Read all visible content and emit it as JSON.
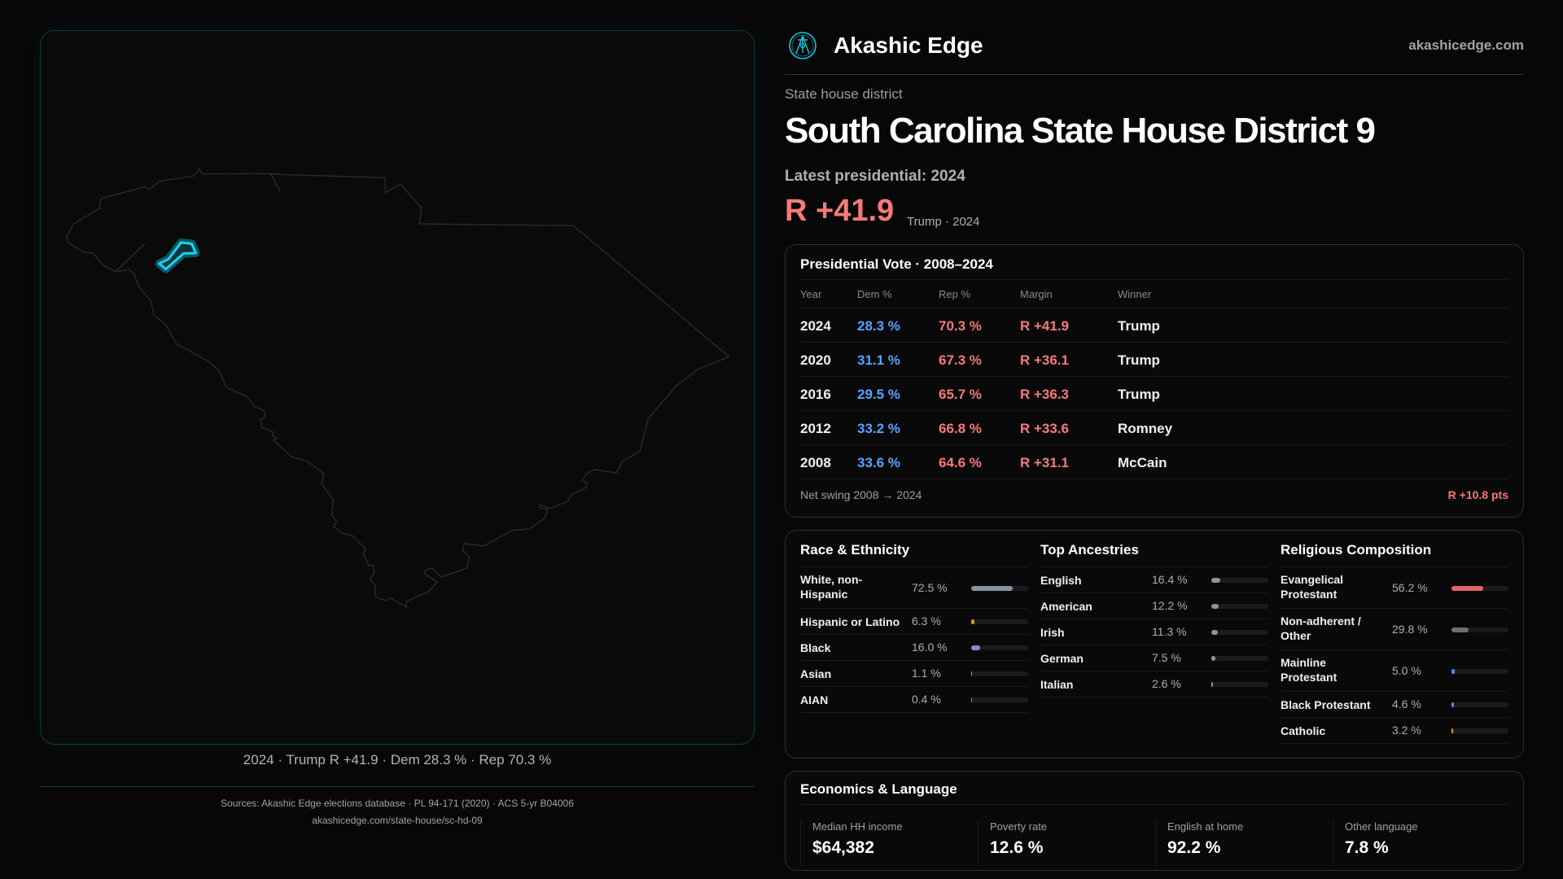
{
  "colors": {
    "accent": "#19d3f0",
    "dem": "#5aa2ff",
    "rep": "#f47a78"
  },
  "map": {
    "caption": "2024 · Trump R +41.9 · Dem 28.3 % · Rep 70.3 %",
    "state": "South Carolina",
    "highlight": "District 9"
  },
  "header": {
    "brand": "Akashic Edge",
    "site": "akashicedge.com",
    "logo_icon": "compass-key-emblem-icon"
  },
  "hero": {
    "kicker": "State house district",
    "title": "South Carolina State House District 9",
    "latest": "Latest presidential: 2024",
    "margin": "R +41.9",
    "margin_sub": "Trump · 2024"
  },
  "presidential": {
    "title": "Presidential Vote · 2008–2024",
    "headers": [
      "Year",
      "Dem %",
      "Rep %",
      "Margin",
      "Winner"
    ],
    "rows": [
      {
        "year": "2024",
        "dem": "28.3 %",
        "rep": "70.3 %",
        "margin": "R +41.9",
        "winner": "Trump"
      },
      {
        "year": "2020",
        "dem": "31.1 %",
        "rep": "67.3 %",
        "margin": "R +36.1",
        "winner": "Trump"
      },
      {
        "year": "2016",
        "dem": "29.5 %",
        "rep": "65.7 %",
        "margin": "R +36.3",
        "winner": "Trump"
      },
      {
        "year": "2012",
        "dem": "33.2 %",
        "rep": "66.8 %",
        "margin": "R +33.6",
        "winner": "Romney"
      },
      {
        "year": "2008",
        "dem": "33.6 %",
        "rep": "64.6 %",
        "margin": "R +31.1",
        "winner": "McCain"
      }
    ],
    "swing_label": "Net swing 2008 → 2024",
    "swing_value": "R +10.8 pts"
  },
  "demographics": [
    {
      "title": "Race & Ethnicity",
      "items": [
        {
          "label": "White, non-Hispanic",
          "value": "72.5 %",
          "pct": 72.5,
          "color": "#8a93a3"
        },
        {
          "label": "Hispanic or Latino",
          "value": "6.3 %",
          "pct": 6.3,
          "color": "#d89a1a"
        },
        {
          "label": "Black",
          "value": "16.0 %",
          "pct": 16.0,
          "color": "#9b7fe0"
        },
        {
          "label": "Asian",
          "value": "1.1 %",
          "pct": 1.1,
          "color": "#2ec4a0"
        },
        {
          "label": "AIAN",
          "value": "0.4 %",
          "pct": 0.4,
          "color": "#d0782a"
        }
      ]
    },
    {
      "title": "Top Ancestries",
      "items": [
        {
          "label": "English",
          "value": "16.4 %",
          "pct": 16.4,
          "color": "#8a93a3"
        },
        {
          "label": "American",
          "value": "12.2 %",
          "pct": 12.2,
          "color": "#8a93a3"
        },
        {
          "label": "Irish",
          "value": "11.3 %",
          "pct": 11.3,
          "color": "#8a93a3"
        },
        {
          "label": "German",
          "value": "7.5 %",
          "pct": 7.5,
          "color": "#8a93a3"
        },
        {
          "label": "Italian",
          "value": "2.6 %",
          "pct": 2.6,
          "color": "#8a93a3"
        }
      ]
    },
    {
      "title": "Religious Composition",
      "items": [
        {
          "label": "Evangelical Protestant",
          "value": "56.2 %",
          "pct": 56.2,
          "color": "#e06666"
        },
        {
          "label": "Non-adherent / Other",
          "value": "29.8 %",
          "pct": 29.8,
          "color": "#6b6f78"
        },
        {
          "label": "Mainline Protestant",
          "value": "5.0 %",
          "pct": 5.0,
          "color": "#4a90e2"
        },
        {
          "label": "Black Protestant",
          "value": "4.6 %",
          "pct": 4.6,
          "color": "#8e6fe0"
        },
        {
          "label": "Catholic",
          "value": "3.2 %",
          "pct": 3.2,
          "color": "#d8a21a"
        }
      ]
    }
  ],
  "economics": {
    "title": "Economics & Language",
    "items": [
      {
        "label": "Median HH income",
        "value": "$64,382"
      },
      {
        "label": "Poverty rate",
        "value": "12.6 %"
      },
      {
        "label": "English at home",
        "value": "92.2 %"
      },
      {
        "label": "Other language",
        "value": "7.8 %"
      }
    ]
  },
  "footer": {
    "sources": "Sources: Akashic Edge elections database · PL 94-171 (2020) · ACS 5-yr B04006",
    "url": "akashicedge.com/state-house/sc-hd-09"
  }
}
